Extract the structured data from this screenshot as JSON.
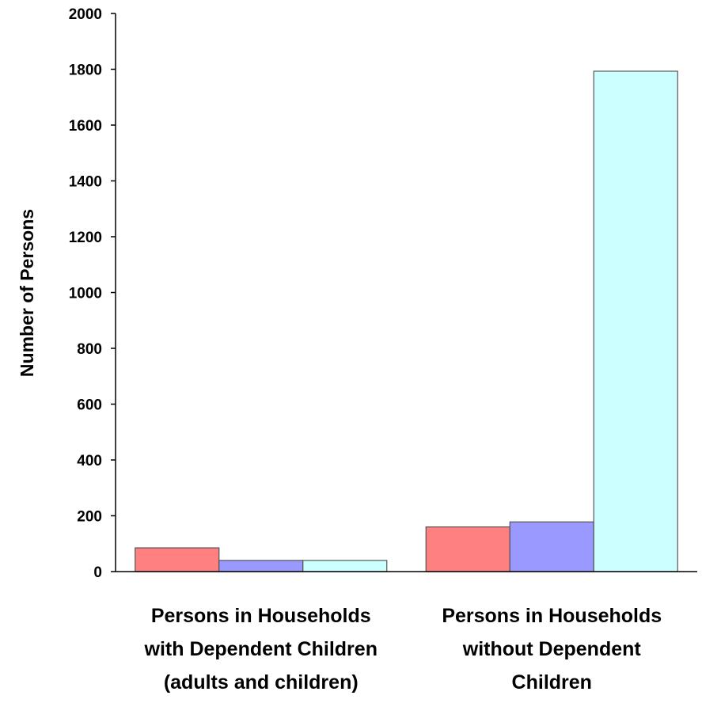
{
  "chart_data": {
    "type": "bar",
    "title": "",
    "xlabel": "",
    "ylabel": "Number of Persons",
    "ylim": [
      0,
      2000
    ],
    "yticks": [
      0,
      200,
      400,
      600,
      800,
      1000,
      1200,
      1400,
      1600,
      1800,
      2000
    ],
    "grid": false,
    "legend": "none",
    "categories": [
      [
        "Persons in Households",
        "with Dependent Children",
        "(adults and children)"
      ],
      [
        "Persons in Households",
        "without Dependent",
        "Children"
      ]
    ],
    "series": [
      {
        "color": "#ff8080",
        "values": [
          85,
          160
        ]
      },
      {
        "color": "#9999ff",
        "values": [
          40,
          178
        ]
      },
      {
        "color": "#ccffff",
        "values": [
          40,
          1793
        ]
      }
    ]
  }
}
